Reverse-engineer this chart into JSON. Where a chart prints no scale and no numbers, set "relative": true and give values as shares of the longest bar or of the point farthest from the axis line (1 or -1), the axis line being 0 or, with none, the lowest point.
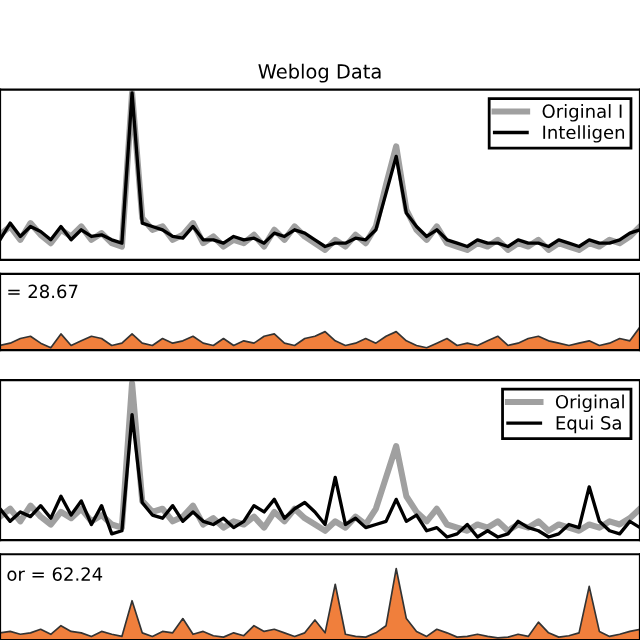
{
  "chart_data": [
    {
      "type": "line",
      "title": "Weblog Data",
      "relative": true,
      "legend": "top right",
      "categories": [
        null,
        null,
        null,
        null,
        null,
        null,
        null,
        null,
        null,
        null,
        null,
        null,
        null,
        null,
        null,
        null,
        null,
        null,
        null,
        null,
        null,
        null,
        null,
        null,
        null,
        null,
        null,
        null,
        null,
        null,
        null,
        null,
        null,
        null,
        null,
        null,
        null,
        null,
        null,
        null,
        null,
        null,
        null,
        null,
        null,
        null,
        null,
        null,
        null,
        null,
        null,
        null,
        null,
        null,
        null,
        null,
        null,
        null,
        null,
        null,
        null,
        null,
        null,
        null
      ],
      "series": [
        {
          "name": "Original I",
          "color": "#a0a0a0",
          "values": [
            0.15,
            0.2,
            0.12,
            0.22,
            0.15,
            0.1,
            0.18,
            0.14,
            0.2,
            0.12,
            0.16,
            0.1,
            0.08,
            1.0,
            0.25,
            0.18,
            0.2,
            0.12,
            0.15,
            0.22,
            0.1,
            0.14,
            0.08,
            0.12,
            0.1,
            0.15,
            0.08,
            0.18,
            0.12,
            0.2,
            0.14,
            0.1,
            0.06,
            0.12,
            0.08,
            0.15,
            0.1,
            0.2,
            0.45,
            0.68,
            0.3,
            0.18,
            0.12,
            0.2,
            0.1,
            0.08,
            0.06,
            0.1,
            0.08,
            0.12,
            0.06,
            0.1,
            0.08,
            0.12,
            0.06,
            0.1,
            0.08,
            0.06,
            0.1,
            0.08,
            0.12,
            0.1,
            0.14,
            0.2
          ]
        },
        {
          "name": "Intelligen",
          "color": "#000000",
          "values": [
            0.12,
            0.22,
            0.14,
            0.2,
            0.17,
            0.12,
            0.2,
            0.12,
            0.18,
            0.14,
            0.15,
            0.12,
            0.1,
            1.0,
            0.22,
            0.2,
            0.18,
            0.14,
            0.13,
            0.2,
            0.12,
            0.12,
            0.1,
            0.14,
            0.12,
            0.13,
            0.1,
            0.16,
            0.14,
            0.18,
            0.16,
            0.12,
            0.08,
            0.1,
            0.1,
            0.13,
            0.12,
            0.18,
            0.4,
            0.62,
            0.28,
            0.2,
            0.14,
            0.18,
            0.12,
            0.1,
            0.08,
            0.12,
            0.1,
            0.1,
            0.08,
            0.12,
            0.1,
            0.1,
            0.08,
            0.12,
            0.1,
            0.08,
            0.12,
            0.1,
            0.1,
            0.12,
            0.16,
            0.18
          ]
        }
      ]
    },
    {
      "type": "area",
      "relative": true,
      "annotations": [
        "= 28.67"
      ],
      "categories": [
        null,
        null,
        null,
        null,
        null,
        null,
        null,
        null,
        null,
        null,
        null,
        null,
        null,
        null,
        null,
        null,
        null,
        null,
        null,
        null,
        null,
        null,
        null,
        null,
        null,
        null,
        null,
        null,
        null,
        null,
        null,
        null,
        null,
        null,
        null,
        null,
        null,
        null,
        null,
        null,
        null,
        null,
        null,
        null,
        null,
        null,
        null,
        null,
        null,
        null,
        null,
        null,
        null,
        null,
        null,
        null,
        null,
        null,
        null,
        null,
        null,
        null,
        null,
        null
      ],
      "series": [
        {
          "color": "#f07f3c",
          "values": [
            0.2,
            0.3,
            0.5,
            0.6,
            0.3,
            0.1,
            0.7,
            0.2,
            0.4,
            0.6,
            0.5,
            0.2,
            0.3,
            0.7,
            0.3,
            0.2,
            0.5,
            0.3,
            0.4,
            0.6,
            0.3,
            0.2,
            0.5,
            0.2,
            0.4,
            0.3,
            0.6,
            0.7,
            0.3,
            0.2,
            0.5,
            0.6,
            0.8,
            0.4,
            0.2,
            0.3,
            0.5,
            0.3,
            0.6,
            0.8,
            0.4,
            0.2,
            0.1,
            0.3,
            0.5,
            0.2,
            0.3,
            0.2,
            0.4,
            0.6,
            0.2,
            0.3,
            0.5,
            0.6,
            0.4,
            0.3,
            0.2,
            0.3,
            0.4,
            0.2,
            0.3,
            0.5,
            0.4,
            1.0
          ]
        }
      ]
    },
    {
      "type": "line",
      "relative": true,
      "legend": "top right",
      "categories": [
        null,
        null,
        null,
        null,
        null,
        null,
        null,
        null,
        null,
        null,
        null,
        null,
        null,
        null,
        null,
        null,
        null,
        null,
        null,
        null,
        null,
        null,
        null,
        null,
        null,
        null,
        null,
        null,
        null,
        null,
        null,
        null,
        null,
        null,
        null,
        null,
        null,
        null,
        null,
        null,
        null,
        null,
        null,
        null,
        null,
        null,
        null,
        null,
        null,
        null,
        null,
        null,
        null,
        null,
        null,
        null,
        null,
        null,
        null,
        null,
        null,
        null,
        null,
        null
      ],
      "series": [
        {
          "name": "Original",
          "color": "#a0a0a0",
          "values": [
            0.15,
            0.2,
            0.12,
            0.22,
            0.15,
            0.1,
            0.18,
            0.14,
            0.2,
            0.12,
            0.16,
            0.1,
            0.08,
            1.0,
            0.25,
            0.18,
            0.2,
            0.12,
            0.15,
            0.22,
            0.1,
            0.14,
            0.08,
            0.12,
            0.1,
            0.15,
            0.08,
            0.18,
            0.12,
            0.2,
            0.14,
            0.1,
            0.06,
            0.12,
            0.08,
            0.15,
            0.1,
            0.2,
            0.4,
            0.6,
            0.28,
            0.18,
            0.12,
            0.2,
            0.1,
            0.08,
            0.06,
            0.1,
            0.08,
            0.12,
            0.06,
            0.1,
            0.08,
            0.12,
            0.06,
            0.1,
            0.08,
            0.06,
            0.1,
            0.08,
            0.12,
            0.1,
            0.14,
            0.2
          ]
        },
        {
          "name": "Equi Sa",
          "color": "#000000",
          "values": [
            0.2,
            0.12,
            0.18,
            0.15,
            0.22,
            0.14,
            0.28,
            0.16,
            0.25,
            0.1,
            0.22,
            0.04,
            0.06,
            0.8,
            0.24,
            0.16,
            0.14,
            0.22,
            0.12,
            0.18,
            0.12,
            0.1,
            0.14,
            0.08,
            0.12,
            0.22,
            0.18,
            0.26,
            0.14,
            0.2,
            0.24,
            0.18,
            0.1,
            0.4,
            0.1,
            0.14,
            0.08,
            0.1,
            0.12,
            0.26,
            0.12,
            0.16,
            0.06,
            0.08,
            0.02,
            0.04,
            0.1,
            0.02,
            0.06,
            0.02,
            0.04,
            0.12,
            0.08,
            0.06,
            0.02,
            0.04,
            0.1,
            0.08,
            0.34,
            0.12,
            0.06,
            0.04,
            0.12,
            0.08
          ]
        }
      ]
    },
    {
      "type": "area",
      "relative": true,
      "annotations": [
        "or = 62.24"
      ],
      "categories": [
        null,
        null,
        null,
        null,
        null,
        null,
        null,
        null,
        null,
        null,
        null,
        null,
        null,
        null,
        null,
        null,
        null,
        null,
        null,
        null,
        null,
        null,
        null,
        null,
        null,
        null,
        null,
        null,
        null,
        null,
        null,
        null,
        null,
        null,
        null,
        null,
        null,
        null,
        null,
        null,
        null,
        null,
        null,
        null,
        null,
        null,
        null,
        null,
        null,
        null,
        null,
        null,
        null,
        null,
        null,
        null,
        null,
        null,
        null,
        null,
        null,
        null,
        null,
        null
      ],
      "series": [
        {
          "color": "#f07f3c",
          "values": [
            0.1,
            0.12,
            0.08,
            0.1,
            0.15,
            0.08,
            0.2,
            0.12,
            0.1,
            0.05,
            0.12,
            0.08,
            0.05,
            0.55,
            0.1,
            0.05,
            0.12,
            0.1,
            0.3,
            0.08,
            0.12,
            0.06,
            0.04,
            0.1,
            0.06,
            0.2,
            0.12,
            0.15,
            0.1,
            0.05,
            0.1,
            0.28,
            0.1,
            0.78,
            0.08,
            0.05,
            0.04,
            0.1,
            0.2,
            1.0,
            0.3,
            0.12,
            0.05,
            0.15,
            0.1,
            0.04,
            0.05,
            0.08,
            0.05,
            0.03,
            0.04,
            0.08,
            0.05,
            0.25,
            0.1,
            0.04,
            0.06,
            0.1,
            0.75,
            0.12,
            0.05,
            0.08,
            0.12,
            0.15
          ]
        }
      ]
    }
  ]
}
